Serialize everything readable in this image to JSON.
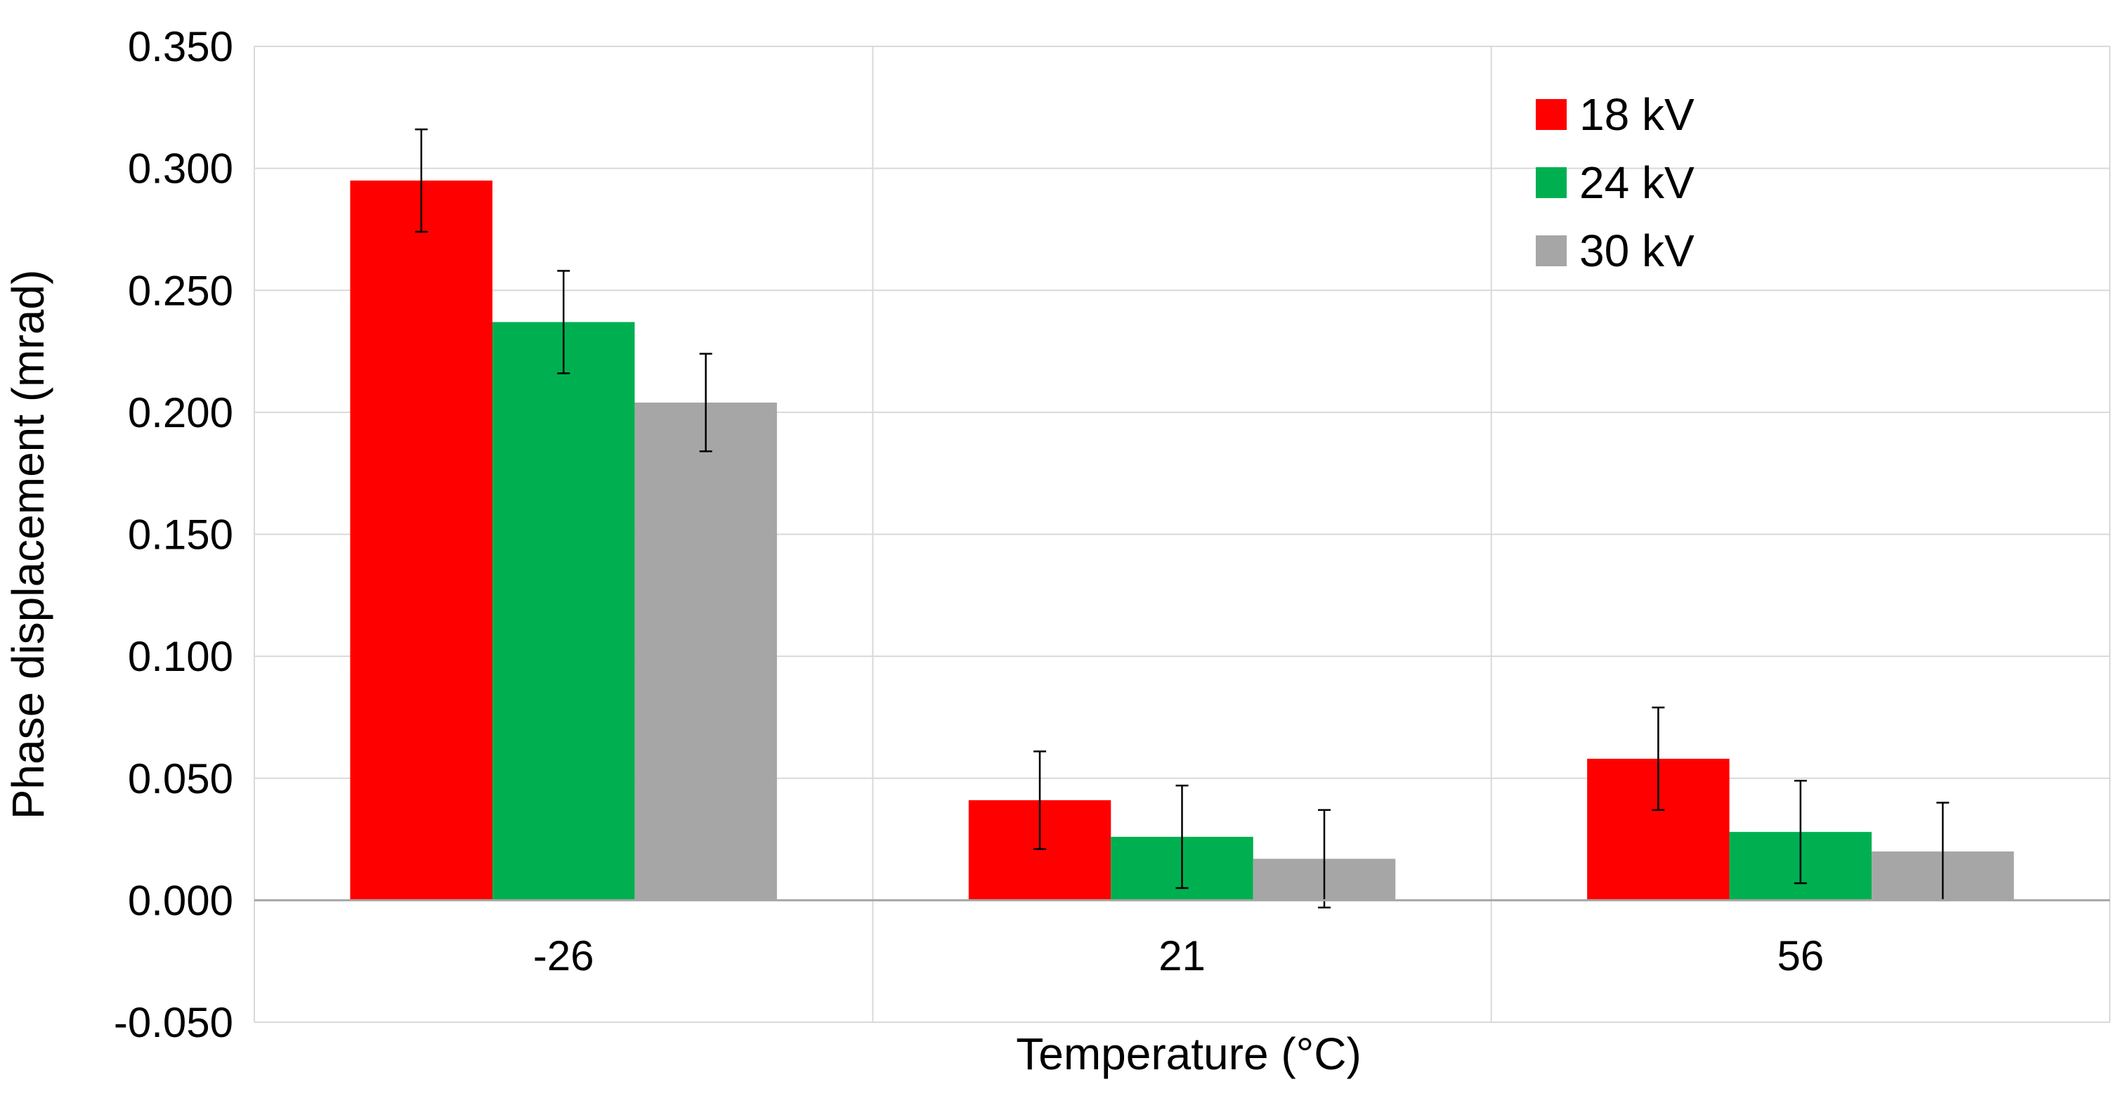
{
  "chart_data": {
    "type": "bar",
    "title": "",
    "xlabel": "Temperature (°C)",
    "ylabel": "Phase displacement (mrad)",
    "ylim": [
      -0.05,
      0.35
    ],
    "yticks": [
      -0.05,
      0.0,
      0.05,
      0.1,
      0.15,
      0.2,
      0.25,
      0.3,
      0.35
    ],
    "ytick_labels": [
      "-0.050",
      "0.000",
      "0.050",
      "0.100",
      "0.150",
      "0.200",
      "0.250",
      "0.300",
      "0.350"
    ],
    "categories": [
      "-26",
      "21",
      "56"
    ],
    "grid": true,
    "legend_position": "top-right",
    "series": [
      {
        "name": "18 kV",
        "color": "#ff0000",
        "values": [
          0.295,
          0.041,
          0.058
        ],
        "errors": [
          0.021,
          0.02,
          0.021
        ]
      },
      {
        "name": "24 kV",
        "color": "#00b050",
        "values": [
          0.237,
          0.026,
          0.028
        ],
        "errors": [
          0.021,
          0.021,
          0.021
        ]
      },
      {
        "name": "30 kV",
        "color": "#a6a6a6",
        "values": [
          0.204,
          0.017,
          0.02
        ],
        "errors": [
          0.02,
          0.02,
          0.02
        ]
      }
    ]
  }
}
